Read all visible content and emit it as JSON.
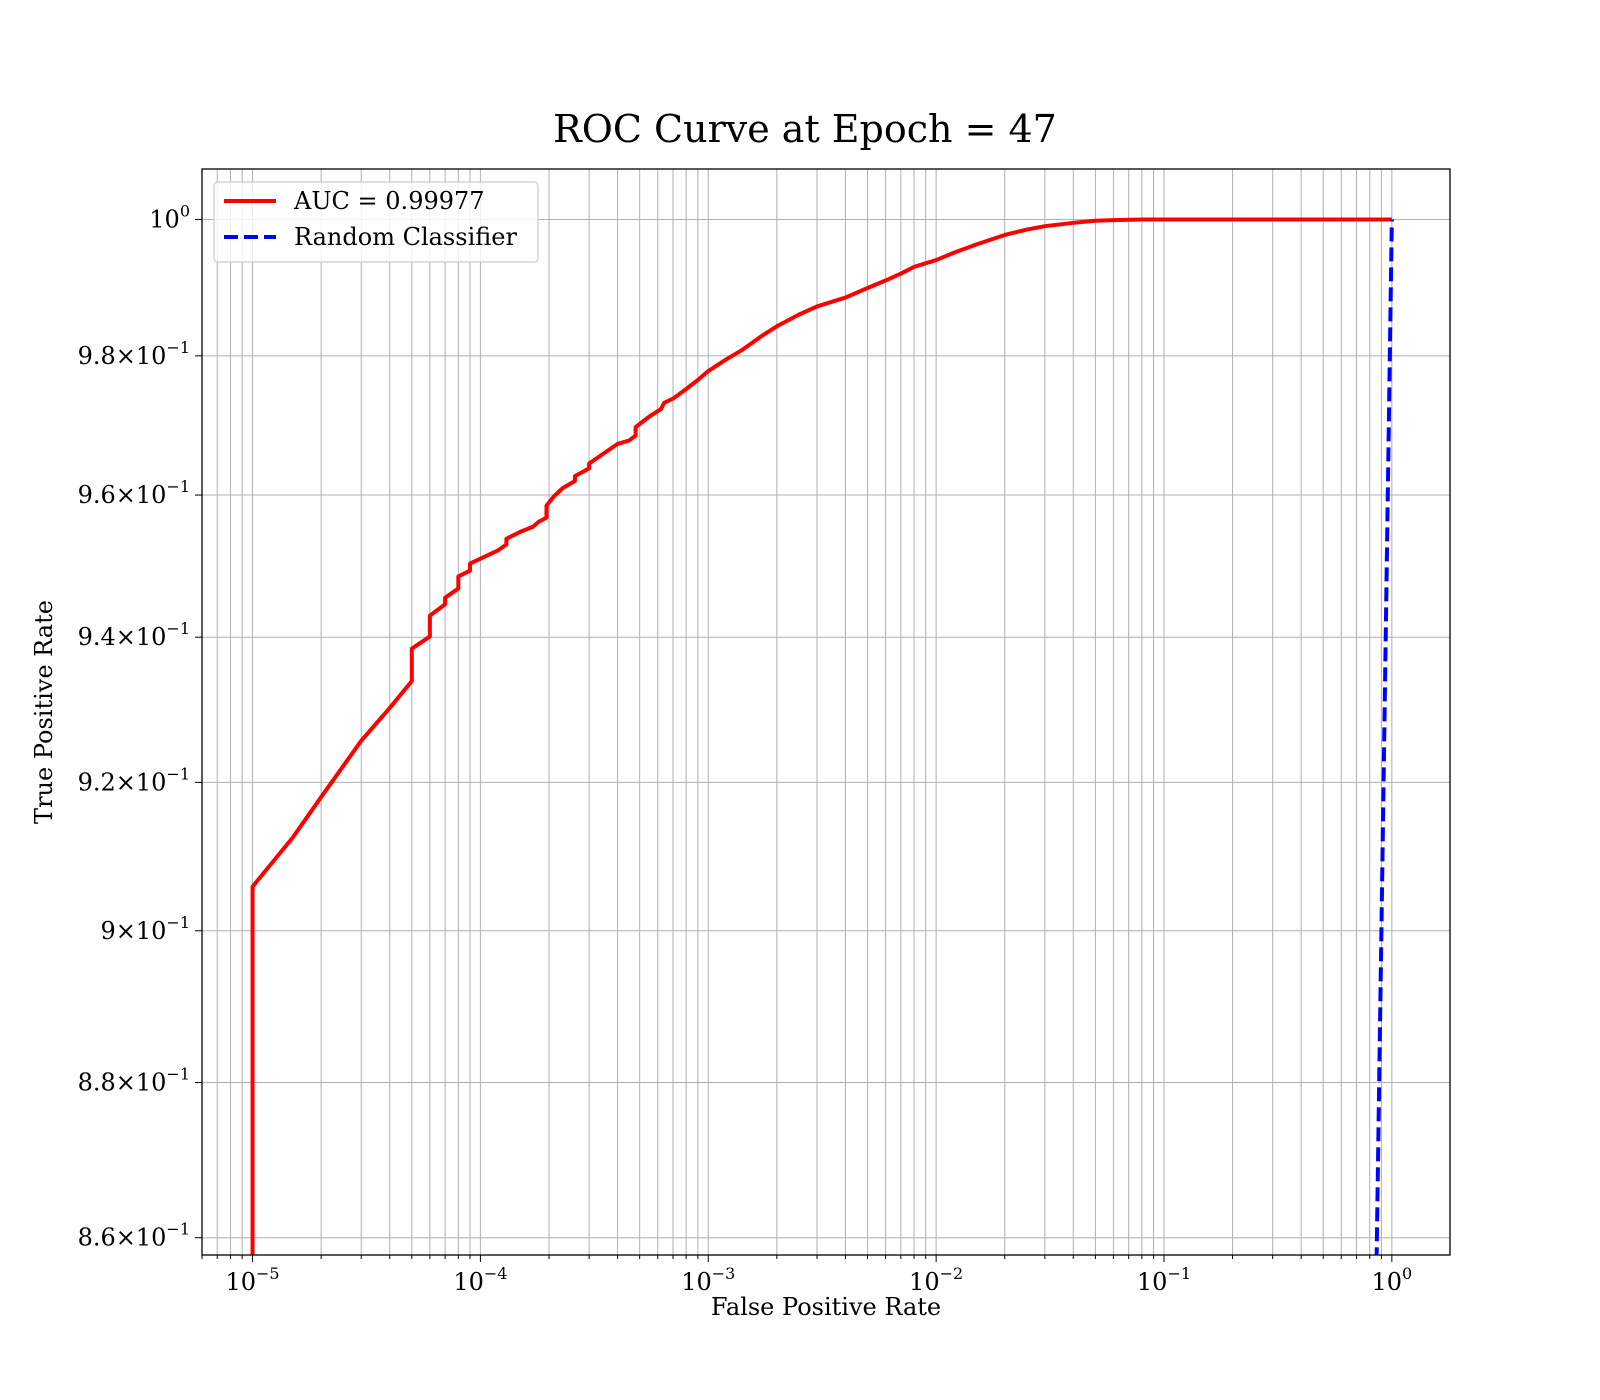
{
  "chart_data": {
    "type": "line",
    "title": "ROC Curve at Epoch = 47",
    "xlabel": "False Positive Rate",
    "ylabel": "True Positive Rate",
    "xscale": "log",
    "yscale": "log",
    "xlim": [
      6e-06,
      1.8
    ],
    "ylim": [
      0.8578,
      1.0075
    ],
    "grid": "on (major and minor)",
    "legend_position": "top-left",
    "x_ticks": [
      {
        "value": 1e-05,
        "base": "10",
        "exp": "−5"
      },
      {
        "value": 0.0001,
        "base": "10",
        "exp": "−4"
      },
      {
        "value": 0.001,
        "base": "10",
        "exp": "−3"
      },
      {
        "value": 0.01,
        "base": "10",
        "exp": "−2"
      },
      {
        "value": 0.1,
        "base": "10",
        "exp": "−1"
      },
      {
        "value": 1,
        "base": "10",
        "exp": "0"
      }
    ],
    "y_ticks": [
      {
        "value": 0.86,
        "base": "8.6×10",
        "exp": "−1"
      },
      {
        "value": 0.88,
        "base": "8.8×10",
        "exp": "−1"
      },
      {
        "value": 0.9,
        "base": "9×10",
        "exp": "−1"
      },
      {
        "value": 0.92,
        "base": "9.2×10",
        "exp": "−1"
      },
      {
        "value": 0.94,
        "base": "9.4×10",
        "exp": "−1"
      },
      {
        "value": 0.96,
        "base": "9.6×10",
        "exp": "−1"
      },
      {
        "value": 0.98,
        "base": "9.8×10",
        "exp": "−1"
      },
      {
        "value": 1.0,
        "base": "10",
        "exp": "0"
      }
    ],
    "series": [
      {
        "name": "AUC = 0.99977",
        "color": "#ff0000",
        "style": "solid",
        "x": [
          1e-05,
          1e-05,
          1e-05,
          1.5e-05,
          2e-05,
          3e-05,
          4e-05,
          5e-05,
          5e-05,
          6e-05,
          6e-05,
          7e-05,
          7e-05,
          8e-05,
          8e-05,
          9e-05,
          9e-05,
          0.0001,
          0.00012,
          0.00013,
          0.00013,
          0.00015,
          0.00017,
          0.00018,
          0.000195,
          0.000195,
          0.00021,
          0.00023,
          0.00026,
          0.00026,
          0.0003,
          0.0003,
          0.00035,
          0.0004,
          0.00045,
          0.00048,
          0.00048,
          0.00055,
          0.00062,
          0.00064,
          0.0007,
          0.0008,
          0.0009,
          0.001,
          0.0012,
          0.0014,
          0.0015,
          0.0017,
          0.002,
          0.0025,
          0.003,
          0.004,
          0.005,
          0.006,
          0.007,
          0.008,
          0.01,
          0.012,
          0.015,
          0.02,
          0.025,
          0.03,
          0.04,
          0.05,
          0.06,
          0.08,
          0.1,
          0.2,
          0.5,
          1
        ],
        "y": [
          0.857,
          0.8642,
          0.9059,
          0.9125,
          0.918,
          0.9257,
          0.9302,
          0.9339,
          0.9384,
          0.9401,
          0.943,
          0.9446,
          0.9455,
          0.9468,
          0.9485,
          0.9493,
          0.9503,
          0.951,
          0.9522,
          0.953,
          0.9538,
          0.9548,
          0.9555,
          0.9562,
          0.9568,
          0.9585,
          0.9598,
          0.961,
          0.962,
          0.9627,
          0.9638,
          0.9645,
          0.966,
          0.9673,
          0.9678,
          0.9685,
          0.9697,
          0.9712,
          0.9723,
          0.9732,
          0.9738,
          0.9752,
          0.9765,
          0.9778,
          0.9795,
          0.9808,
          0.9815,
          0.9828,
          0.9843,
          0.986,
          0.9872,
          0.9885,
          0.9899,
          0.991,
          0.992,
          0.993,
          0.994,
          0.9951,
          0.9963,
          0.9977,
          0.9985,
          0.999,
          0.9995,
          0.9998,
          0.9999,
          1.0,
          1.0,
          1.0,
          1.0,
          1.0
        ]
      },
      {
        "name": "Random Classifier",
        "color": "#0000ff",
        "style": "dashed",
        "x": [
          0.857,
          0.86,
          0.88,
          0.9,
          0.92,
          0.94,
          0.96,
          0.98,
          1.0
        ],
        "y": [
          0.857,
          0.86,
          0.88,
          0.9,
          0.92,
          0.94,
          0.96,
          0.98,
          1.0
        ]
      }
    ]
  }
}
